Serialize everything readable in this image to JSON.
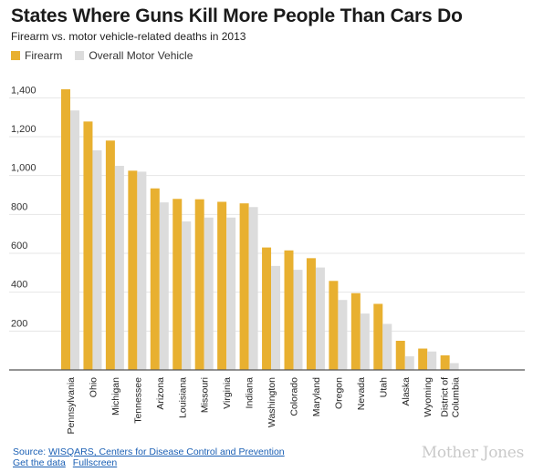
{
  "header": {
    "title": "States Where Guns Kill More People Than Cars Do",
    "subtitle": "Firearm vs. motor vehicle-related deaths in 2013"
  },
  "colors": {
    "firearm": "#e8b030",
    "motor_vehicle": "#dcdcdc",
    "grid": "#e6e6e6",
    "axis": "#555555"
  },
  "chart_data": {
    "type": "bar",
    "title": "States Where Guns Kill More People Than Cars Do",
    "subtitle": "Firearm vs. motor vehicle-related deaths in 2013",
    "xlabel": "",
    "ylabel": "",
    "ylim": [
      0,
      1500
    ],
    "yticks": [
      200,
      400,
      600,
      800,
      1000,
      1200,
      1400
    ],
    "ytick_labels": [
      "200",
      "400",
      "600",
      "800",
      "1,000",
      "1,200",
      "1,400"
    ],
    "grid": true,
    "legend_position": "top-left",
    "categories": [
      "Pennsylvania",
      "Ohio",
      "Michigan",
      "Tennessee",
      "Arizona",
      "Louisiana",
      "Missouri",
      "Virginia",
      "Indiana",
      "Washington",
      "Colorado",
      "Maryland",
      "Oregon",
      "Nevada",
      "Utah",
      "Alaska",
      "Wyoming",
      "District of Columbia"
    ],
    "category_lines": [
      [
        "Pennsylvania"
      ],
      [
        "Ohio"
      ],
      [
        "Michigan"
      ],
      [
        "Tennessee"
      ],
      [
        "Arizona"
      ],
      [
        "Louisiana"
      ],
      [
        "Missouri"
      ],
      [
        "Virginia"
      ],
      [
        "Indiana"
      ],
      [
        "Washington"
      ],
      [
        "Colorado"
      ],
      [
        "Maryland"
      ],
      [
        "Oregon"
      ],
      [
        "Nevada"
      ],
      [
        "Utah"
      ],
      [
        "Alaska"
      ],
      [
        "Wyoming"
      ],
      [
        "District of",
        "Columbia"
      ]
    ],
    "series": [
      {
        "name": "Firearm",
        "color": "#e8b030",
        "values": [
          1444,
          1278,
          1180,
          1025,
          934,
          880,
          878,
          865,
          857,
          630,
          615,
          575,
          458,
          395,
          340,
          150,
          110,
          75
        ]
      },
      {
        "name": "Overall Motor Vehicle",
        "color": "#dcdcdc",
        "values": [
          1335,
          1130,
          1050,
          1020,
          862,
          764,
          784,
          784,
          838,
          535,
          515,
          527,
          360,
          290,
          237,
          70,
          95,
          35
        ]
      }
    ]
  },
  "footer": {
    "source_label": "Source: ",
    "source_link": "WISQARS, Centers for Disease Control and Prevention",
    "get_data_link": "Get the data",
    "fullscreen_link": "Fullscreen"
  },
  "logo_text": "Mother Jones"
}
